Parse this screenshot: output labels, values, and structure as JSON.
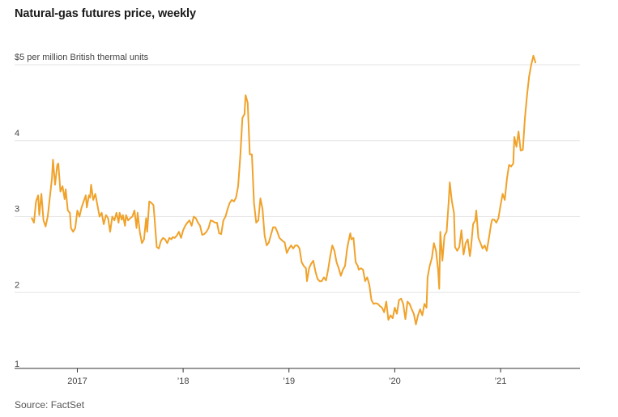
{
  "title": "Natural-gas futures price, weekly",
  "source": "Source: FactSet",
  "colors": {
    "line": "#f0a22a",
    "grid": "#e6e6e6",
    "axis": "#333333"
  },
  "chart_data": {
    "type": "line",
    "title": "Natural-gas futures price, weekly",
    "unit_label": "$5 per million British thermal units",
    "y_ticks": [
      {
        "value": 5,
        "label": "$5 per million British thermal units"
      },
      {
        "value": 4,
        "label": "4"
      },
      {
        "value": 3,
        "label": "3"
      },
      {
        "value": 2,
        "label": "2"
      },
      {
        "value": 1,
        "label": "1"
      }
    ],
    "x_ticks": [
      {
        "value": 2017,
        "label": "2017"
      },
      {
        "value": 2018,
        "label": "’18"
      },
      {
        "value": 2019,
        "label": "’19"
      },
      {
        "value": 2020,
        "label": "’20"
      },
      {
        "value": 2021,
        "label": "’21"
      }
    ],
    "xlim": [
      2016.56,
      2021.75
    ],
    "ylim": [
      1,
      5.2
    ],
    "grid": true,
    "series": [
      {
        "values": [
          [
            2016.57,
            2.98
          ],
          [
            2016.59,
            2.92
          ],
          [
            2016.61,
            3.2
          ],
          [
            2016.63,
            3.28
          ],
          [
            2016.64,
            3.02
          ],
          [
            2016.66,
            3.3
          ],
          [
            2016.68,
            2.95
          ],
          [
            2016.7,
            2.87
          ],
          [
            2016.72,
            3.0
          ],
          [
            2016.74,
            3.25
          ],
          [
            2016.76,
            3.5
          ],
          [
            2016.77,
            3.75
          ],
          [
            2016.79,
            3.42
          ],
          [
            2016.81,
            3.68
          ],
          [
            2016.82,
            3.7
          ],
          [
            2016.84,
            3.33
          ],
          [
            2016.86,
            3.4
          ],
          [
            2016.88,
            3.23
          ],
          [
            2016.89,
            3.36
          ],
          [
            2016.91,
            3.08
          ],
          [
            2016.93,
            3.05
          ],
          [
            2016.94,
            2.85
          ],
          [
            2016.96,
            2.8
          ],
          [
            2016.98,
            2.85
          ],
          [
            2017.0,
            3.08
          ],
          [
            2017.02,
            3.0
          ],
          [
            2017.04,
            3.12
          ],
          [
            2017.06,
            3.2
          ],
          [
            2017.08,
            3.28
          ],
          [
            2017.09,
            3.12
          ],
          [
            2017.11,
            3.28
          ],
          [
            2017.12,
            3.25
          ],
          [
            2017.13,
            3.42
          ],
          [
            2017.15,
            3.22
          ],
          [
            2017.17,
            3.3
          ],
          [
            2017.19,
            3.15
          ],
          [
            2017.21,
            3.0
          ],
          [
            2017.23,
            3.05
          ],
          [
            2017.25,
            2.9
          ],
          [
            2017.27,
            3.02
          ],
          [
            2017.29,
            2.98
          ],
          [
            2017.31,
            2.8
          ],
          [
            2017.33,
            3.0
          ],
          [
            2017.35,
            2.95
          ],
          [
            2017.37,
            3.05
          ],
          [
            2017.39,
            2.92
          ],
          [
            2017.4,
            3.05
          ],
          [
            2017.42,
            2.96
          ],
          [
            2017.43,
            3.02
          ],
          [
            2017.45,
            2.88
          ],
          [
            2017.46,
            3.02
          ],
          [
            2017.48,
            2.95
          ],
          [
            2017.5,
            2.98
          ],
          [
            2017.52,
            3.0
          ],
          [
            2017.54,
            3.08
          ],
          [
            2017.56,
            2.85
          ],
          [
            2017.57,
            3.05
          ],
          [
            2017.59,
            2.8
          ],
          [
            2017.61,
            2.65
          ],
          [
            2017.63,
            2.7
          ],
          [
            2017.65,
            2.98
          ],
          [
            2017.66,
            2.8
          ],
          [
            2017.68,
            3.2
          ],
          [
            2017.7,
            3.18
          ],
          [
            2017.72,
            3.15
          ],
          [
            2017.73,
            2.98
          ],
          [
            2017.75,
            2.6
          ],
          [
            2017.77,
            2.58
          ],
          [
            2017.79,
            2.68
          ],
          [
            2017.81,
            2.72
          ],
          [
            2017.83,
            2.7
          ],
          [
            2017.85,
            2.65
          ],
          [
            2017.87,
            2.72
          ],
          [
            2017.89,
            2.7
          ],
          [
            2017.9,
            2.73
          ],
          [
            2017.92,
            2.72
          ],
          [
            2017.94,
            2.75
          ],
          [
            2017.96,
            2.8
          ],
          [
            2017.98,
            2.72
          ],
          [
            2018.0,
            2.82
          ],
          [
            2018.02,
            2.88
          ],
          [
            2018.04,
            2.92
          ],
          [
            2018.06,
            2.95
          ],
          [
            2018.08,
            2.88
          ],
          [
            2018.1,
            3.0
          ],
          [
            2018.12,
            2.98
          ],
          [
            2018.14,
            2.92
          ],
          [
            2018.16,
            2.88
          ],
          [
            2018.18,
            2.76
          ],
          [
            2018.2,
            2.77
          ],
          [
            2018.22,
            2.8
          ],
          [
            2018.24,
            2.85
          ],
          [
            2018.26,
            2.95
          ],
          [
            2018.28,
            2.94
          ],
          [
            2018.3,
            2.92
          ],
          [
            2018.32,
            2.92
          ],
          [
            2018.34,
            2.78
          ],
          [
            2018.36,
            2.77
          ],
          [
            2018.38,
            2.95
          ],
          [
            2018.4,
            3.0
          ],
          [
            2018.42,
            3.1
          ],
          [
            2018.44,
            3.18
          ],
          [
            2018.46,
            3.22
          ],
          [
            2018.48,
            3.2
          ],
          [
            2018.5,
            3.25
          ],
          [
            2018.52,
            3.4
          ],
          [
            2018.54,
            3.8
          ],
          [
            2018.56,
            4.3
          ],
          [
            2018.58,
            4.35
          ],
          [
            2018.59,
            4.6
          ],
          [
            2018.61,
            4.5
          ],
          [
            2018.63,
            3.82
          ],
          [
            2018.65,
            3.82
          ],
          [
            2018.67,
            3.18
          ],
          [
            2018.69,
            2.92
          ],
          [
            2018.71,
            2.95
          ],
          [
            2018.73,
            3.24
          ],
          [
            2018.75,
            3.1
          ],
          [
            2018.77,
            2.75
          ],
          [
            2018.79,
            2.62
          ],
          [
            2018.81,
            2.66
          ],
          [
            2018.83,
            2.76
          ],
          [
            2018.85,
            2.86
          ],
          [
            2018.87,
            2.86
          ],
          [
            2018.89,
            2.8
          ],
          [
            2018.91,
            2.72
          ],
          [
            2018.94,
            2.68
          ],
          [
            2018.96,
            2.66
          ],
          [
            2018.98,
            2.52
          ],
          [
            2019.0,
            2.58
          ],
          [
            2019.02,
            2.62
          ],
          [
            2019.04,
            2.58
          ],
          [
            2019.06,
            2.62
          ],
          [
            2019.08,
            2.62
          ],
          [
            2019.1,
            2.58
          ],
          [
            2019.12,
            2.4
          ],
          [
            2019.14,
            2.35
          ],
          [
            2019.16,
            2.32
          ],
          [
            2019.17,
            2.15
          ],
          [
            2019.19,
            2.32
          ],
          [
            2019.21,
            2.38
          ],
          [
            2019.23,
            2.42
          ],
          [
            2019.25,
            2.28
          ],
          [
            2019.27,
            2.18
          ],
          [
            2019.29,
            2.15
          ],
          [
            2019.31,
            2.15
          ],
          [
            2019.33,
            2.2
          ],
          [
            2019.35,
            2.16
          ],
          [
            2019.37,
            2.3
          ],
          [
            2019.39,
            2.48
          ],
          [
            2019.41,
            2.62
          ],
          [
            2019.43,
            2.55
          ],
          [
            2019.45,
            2.4
          ],
          [
            2019.47,
            2.32
          ],
          [
            2019.49,
            2.22
          ],
          [
            2019.51,
            2.3
          ],
          [
            2019.53,
            2.35
          ],
          [
            2019.55,
            2.58
          ],
          [
            2019.57,
            2.72
          ],
          [
            2019.58,
            2.78
          ],
          [
            2019.59,
            2.7
          ],
          [
            2019.61,
            2.72
          ],
          [
            2019.63,
            2.4
          ],
          [
            2019.65,
            2.35
          ],
          [
            2019.66,
            2.3
          ],
          [
            2019.68,
            2.32
          ],
          [
            2019.7,
            2.3
          ],
          [
            2019.72,
            2.15
          ],
          [
            2019.74,
            2.2
          ],
          [
            2019.76,
            2.1
          ],
          [
            2019.78,
            1.9
          ],
          [
            2019.8,
            1.85
          ],
          [
            2019.82,
            1.86
          ],
          [
            2019.84,
            1.85
          ],
          [
            2019.86,
            1.82
          ],
          [
            2019.88,
            1.8
          ],
          [
            2019.9,
            1.74
          ],
          [
            2019.92,
            1.88
          ],
          [
            2019.94,
            1.64
          ],
          [
            2019.96,
            1.7
          ],
          [
            2019.98,
            1.66
          ],
          [
            2020.0,
            1.8
          ],
          [
            2020.02,
            1.72
          ],
          [
            2020.04,
            1.9
          ],
          [
            2020.06,
            1.92
          ],
          [
            2020.08,
            1.85
          ],
          [
            2020.1,
            1.65
          ],
          [
            2020.12,
            1.88
          ],
          [
            2020.14,
            1.85
          ],
          [
            2020.16,
            1.78
          ],
          [
            2020.18,
            1.72
          ],
          [
            2020.2,
            1.58
          ],
          [
            2020.22,
            1.7
          ],
          [
            2020.24,
            1.78
          ],
          [
            2020.26,
            1.7
          ],
          [
            2020.28,
            1.85
          ],
          [
            2020.3,
            1.8
          ],
          [
            2020.31,
            2.2
          ],
          [
            2020.33,
            2.35
          ],
          [
            2020.35,
            2.45
          ],
          [
            2020.37,
            2.65
          ],
          [
            2020.39,
            2.55
          ],
          [
            2020.41,
            2.3
          ],
          [
            2020.42,
            2.05
          ],
          [
            2020.43,
            2.8
          ],
          [
            2020.45,
            2.42
          ],
          [
            2020.47,
            2.75
          ],
          [
            2020.49,
            2.8
          ],
          [
            2020.51,
            3.2
          ],
          [
            2020.52,
            3.45
          ],
          [
            2020.54,
            3.2
          ],
          [
            2020.56,
            3.05
          ],
          [
            2020.57,
            2.6
          ],
          [
            2020.59,
            2.55
          ],
          [
            2020.61,
            2.6
          ],
          [
            2020.63,
            2.82
          ],
          [
            2020.65,
            2.5
          ],
          [
            2020.67,
            2.65
          ],
          [
            2020.69,
            2.7
          ],
          [
            2020.71,
            2.48
          ],
          [
            2020.72,
            2.58
          ],
          [
            2020.74,
            2.9
          ],
          [
            2020.76,
            2.95
          ],
          [
            2020.77,
            3.08
          ],
          [
            2020.79,
            2.72
          ],
          [
            2020.81,
            2.65
          ],
          [
            2020.83,
            2.58
          ],
          [
            2020.85,
            2.62
          ],
          [
            2020.87,
            2.55
          ],
          [
            2020.89,
            2.72
          ],
          [
            2020.91,
            2.9
          ],
          [
            2020.92,
            2.96
          ],
          [
            2020.94,
            2.96
          ],
          [
            2020.96,
            2.92
          ],
          [
            2020.98,
            2.98
          ],
          [
            2021.0,
            3.15
          ],
          [
            2021.02,
            3.3
          ],
          [
            2021.04,
            3.22
          ],
          [
            2021.06,
            3.5
          ],
          [
            2021.08,
            3.68
          ],
          [
            2021.1,
            3.66
          ],
          [
            2021.12,
            3.7
          ],
          [
            2021.13,
            4.05
          ],
          [
            2021.15,
            3.92
          ],
          [
            2021.17,
            4.12
          ],
          [
            2021.19,
            3.87
          ],
          [
            2021.21,
            3.88
          ],
          [
            2021.23,
            4.3
          ],
          [
            2021.25,
            4.6
          ],
          [
            2021.27,
            4.85
          ],
          [
            2021.29,
            5.0
          ],
          [
            2021.31,
            5.12
          ],
          [
            2021.33,
            5.03
          ]
        ]
      }
    ]
  }
}
